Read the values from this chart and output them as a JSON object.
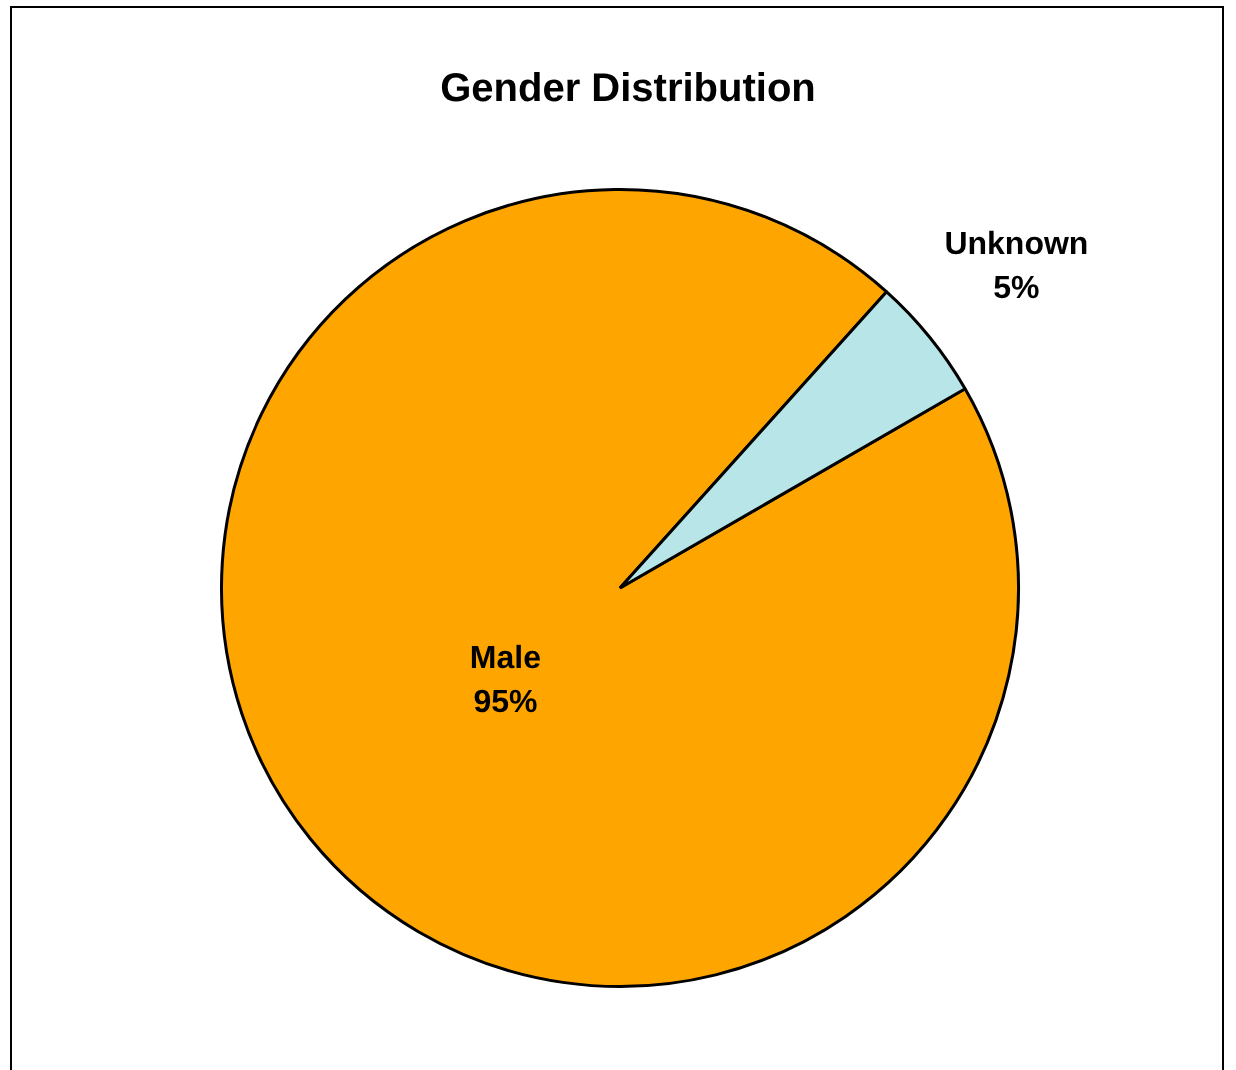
{
  "chart_data": {
    "type": "pie",
    "title": "Gender Distribution",
    "categories": [
      "Male",
      "Unknown"
    ],
    "values": [
      95,
      5
    ],
    "value_labels": [
      "95%",
      "5%"
    ],
    "colors": [
      "#ffa500",
      "#b8e6e8"
    ],
    "legend": false
  }
}
